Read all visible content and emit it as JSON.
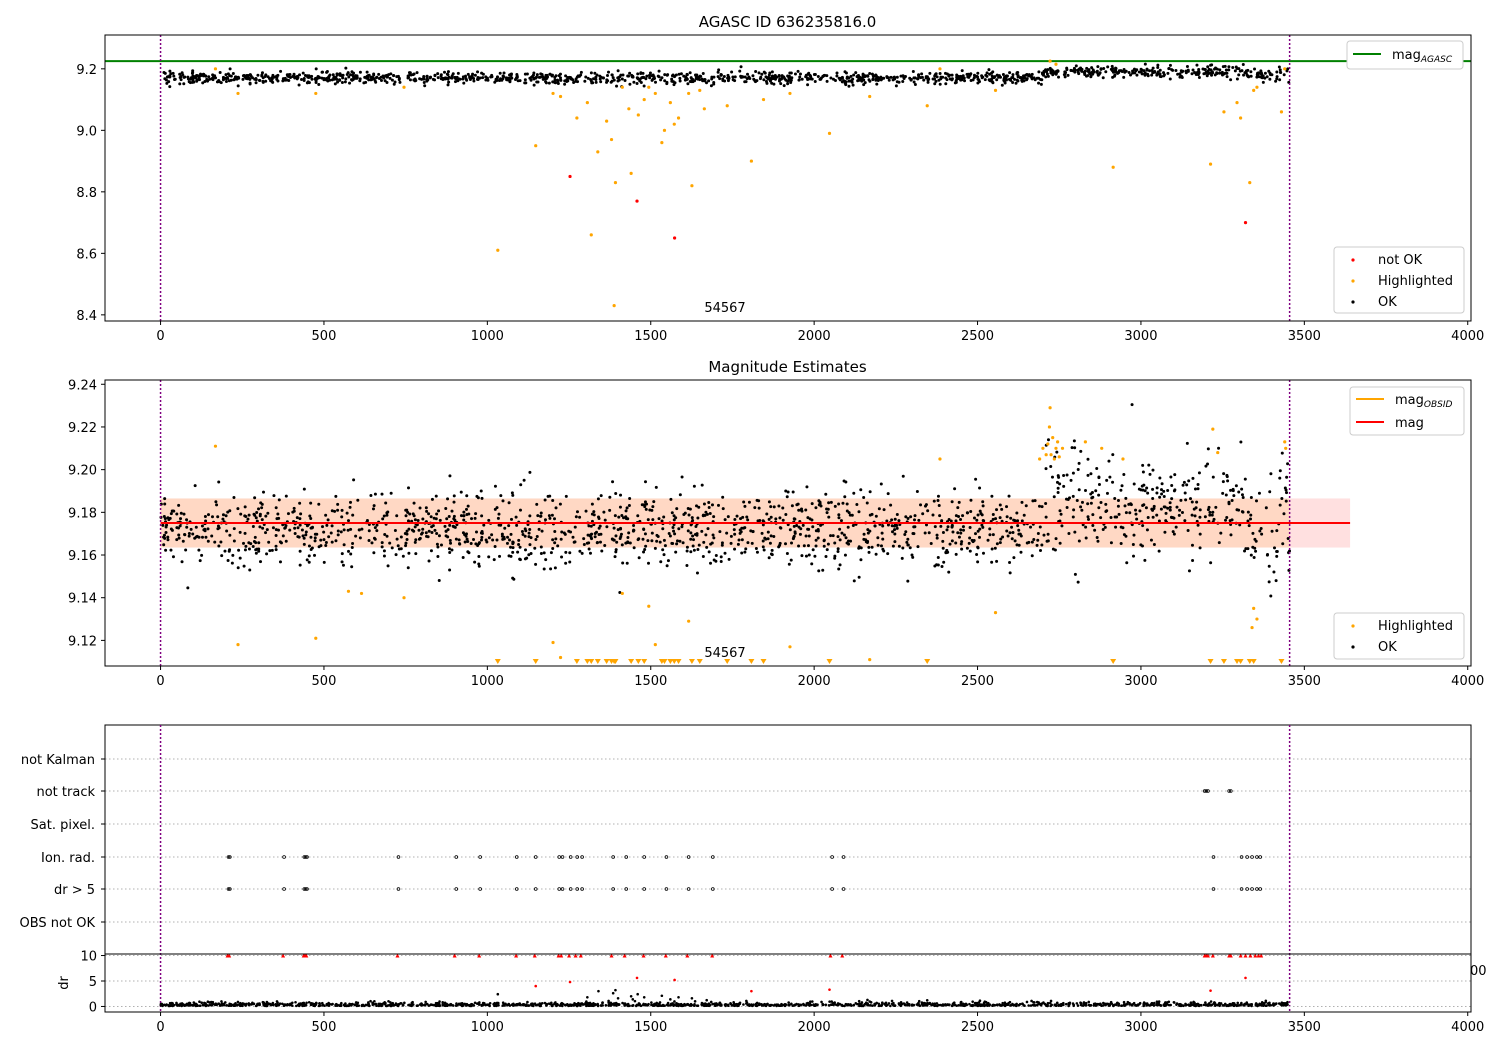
{
  "chart_data": [
    {
      "type": "scatter",
      "title": "AGASC ID 636235816.0",
      "xlim": [
        -170,
        4010
      ],
      "ylim": [
        8.38,
        9.31
      ],
      "xticks": [
        0,
        500,
        1000,
        1500,
        2000,
        2500,
        3000,
        3500,
        4000
      ],
      "yticks": [
        8.4,
        8.6,
        8.8,
        9.0,
        9.2
      ],
      "ytick_labels": [
        "8.4",
        "8.6",
        "8.8",
        "9.0",
        "9.2"
      ],
      "annotation": {
        "text": "54567",
        "x": 1725,
        "y": 8.38
      },
      "vlines": [
        0,
        3455
      ],
      "hline": {
        "y": 9.225,
        "label_main": "mag",
        "label_sub": "AGASC",
        "color": "#008000"
      },
      "ok_band": {
        "x0": 0,
        "x1": 3455,
        "y_base": 9.17,
        "spread": 0.01,
        "n_points": 1400
      },
      "series": [
        {
          "name": "not OK",
          "color": "#ff0000",
          "points": [
            [
              1253,
              8.85
            ],
            [
              1458,
              8.77
            ],
            [
              1573,
              8.65
            ],
            [
              3320,
              8.7
            ]
          ]
        },
        {
          "name": "Highlighted",
          "color": "#ffa500",
          "points": [
            [
              168,
              9.2
            ],
            [
              237,
              9.12
            ],
            [
              475,
              9.12
            ],
            [
              745,
              9.14
            ],
            [
              1032,
              8.61
            ],
            [
              1148,
              8.95
            ],
            [
              1201,
              9.12
            ],
            [
              1224,
              9.11
            ],
            [
              1274,
              9.04
            ],
            [
              1306,
              9.09
            ],
            [
              1318,
              8.66
            ],
            [
              1338,
              8.93
            ],
            [
              1365,
              9.03
            ],
            [
              1380,
              8.97
            ],
            [
              1388,
              8.43
            ],
            [
              1392,
              8.83
            ],
            [
              1413,
              9.14
            ],
            [
              1433,
              9.07
            ],
            [
              1440,
              8.86
            ],
            [
              1462,
              9.05
            ],
            [
              1480,
              9.1
            ],
            [
              1494,
              9.14
            ],
            [
              1514,
              9.12
            ],
            [
              1534,
              8.96
            ],
            [
              1542,
              9.0
            ],
            [
              1560,
              9.09
            ],
            [
              1572,
              9.02
            ],
            [
              1585,
              9.04
            ],
            [
              1616,
              9.12
            ],
            [
              1626,
              8.82
            ],
            [
              1650,
              9.13
            ],
            [
              1664,
              9.07
            ],
            [
              1734,
              9.08
            ],
            [
              1808,
              8.9
            ],
            [
              1845,
              9.1
            ],
            [
              1926,
              9.12
            ],
            [
              2047,
              8.99
            ],
            [
              2170,
              9.11
            ],
            [
              2346,
              9.08
            ],
            [
              2385,
              9.2
            ],
            [
              2555,
              9.13
            ],
            [
              2722,
              9.225
            ],
            [
              2740,
              9.215
            ],
            [
              2915,
              8.88
            ],
            [
              3213,
              8.89
            ],
            [
              3254,
              9.06
            ],
            [
              3294,
              9.09
            ],
            [
              3305,
              9.04
            ],
            [
              3333,
              8.83
            ],
            [
              3345,
              9.13
            ],
            [
              3355,
              9.14
            ],
            [
              3430,
              9.06
            ],
            [
              3440,
              9.2
            ]
          ]
        },
        {
          "name": "OK",
          "color": "#000000",
          "points": []
        }
      ]
    },
    {
      "type": "scatter",
      "title": "Magnitude Estimates",
      "xlim": [
        -170,
        4010
      ],
      "ylim": [
        9.108,
        9.242
      ],
      "xticks": [
        0,
        500,
        1000,
        1500,
        2000,
        2500,
        3000,
        3500,
        4000
      ],
      "yticks": [
        9.12,
        9.14,
        9.16,
        9.18,
        9.2,
        9.22,
        9.24
      ],
      "ytick_labels": [
        "9.12",
        "9.14",
        "9.16",
        "9.18",
        "9.20",
        "9.22",
        "9.24"
      ],
      "annotation": {
        "text": "54567",
        "x": 1725,
        "y": 9.108
      },
      "vlines": [
        0,
        3455
      ],
      "mag_line": {
        "y": 9.175,
        "x0": 0,
        "x1": 3455,
        "label": "mag",
        "color": "#ff0000"
      },
      "band": {
        "x0": 0,
        "x1": 3640,
        "y0": 9.1635,
        "y1": 9.1865
      },
      "mag_obsid_label": {
        "main": "mag",
        "sub": "OBSID",
        "color": "#ffa500"
      },
      "below_range_markers_x": [
        1032,
        1148,
        1274,
        1306,
        1318,
        1338,
        1365,
        1380,
        1388,
        1392,
        1440,
        1462,
        1480,
        1534,
        1542,
        1560,
        1572,
        1585,
        1626,
        1650,
        1734,
        1808,
        1845,
        2047,
        2346,
        2915,
        3213,
        3254,
        3294,
        3305,
        3333,
        3345,
        3430
      ],
      "ok_band": {
        "x0": 0,
        "x1": 3455,
        "y_base": 9.172,
        "spread": 0.009,
        "n_points": 1700
      },
      "series": [
        {
          "name": "Highlighted",
          "color": "#ffa500",
          "points": [
            [
              168,
              9.211
            ],
            [
              237,
              9.118
            ],
            [
              475,
              9.121
            ],
            [
              575,
              9.143
            ],
            [
              615,
              9.142
            ],
            [
              745,
              9.14
            ],
            [
              1201,
              9.119
            ],
            [
              1224,
              9.112
            ],
            [
              1413,
              9.142
            ],
            [
              1494,
              9.136
            ],
            [
              1514,
              9.118
            ],
            [
              1616,
              9.129
            ],
            [
              1926,
              9.117
            ],
            [
              2170,
              9.111
            ],
            [
              2385,
              9.205
            ],
            [
              2555,
              9.133
            ],
            [
              2690,
              9.205
            ],
            [
              2700,
              9.21
            ],
            [
              2710,
              9.207
            ],
            [
              2715,
              9.212
            ],
            [
              2720,
              9.22
            ],
            [
              2722,
              9.229
            ],
            [
              2725,
              9.207
            ],
            [
              2730,
              9.215
            ],
            [
              2735,
              9.205
            ],
            [
              2740,
              9.21
            ],
            [
              2745,
              9.213
            ],
            [
              2750,
              9.206
            ],
            [
              2760,
              9.21
            ],
            [
              2830,
              9.213
            ],
            [
              2880,
              9.21
            ],
            [
              2945,
              9.205
            ],
            [
              3220,
              9.219
            ],
            [
              3235,
              9.208
            ],
            [
              3340,
              9.126
            ],
            [
              3345,
              9.135
            ],
            [
              3355,
              9.13
            ],
            [
              3440,
              9.213
            ],
            [
              3443,
              9.21
            ]
          ]
        },
        {
          "name": "OK",
          "color": "#000000",
          "points": []
        }
      ]
    },
    {
      "type": "scatter",
      "title": "",
      "xlim": [
        -170,
        4010
      ],
      "xticks": [
        0,
        500,
        1000,
        1500,
        2000,
        2500,
        3000,
        3500,
        4000
      ],
      "vlines": [
        0,
        3455
      ],
      "flags": [
        {
          "label": "not Kalman",
          "points": []
        },
        {
          "label": "not track",
          "points": [
            3195,
            3200,
            3205,
            3270,
            3275
          ]
        },
        {
          "label": "Sat. pixel.",
          "points": []
        },
        {
          "label": "Ion. rad.",
          "points": [
            208,
            212,
            378,
            440,
            444,
            448,
            728,
            905,
            978,
            1090,
            1148,
            1220,
            1230,
            1255,
            1275,
            1290,
            1385,
            1425,
            1480,
            1548,
            1616,
            1690,
            2055,
            2090,
            3222,
            3308,
            3325,
            3340,
            3355,
            3365
          ]
        },
        {
          "label": "dr > 5",
          "points": [
            208,
            212,
            378,
            440,
            444,
            448,
            728,
            905,
            978,
            1090,
            1148,
            1220,
            1230,
            1255,
            1275,
            1290,
            1385,
            1425,
            1480,
            1548,
            1616,
            1690,
            2055,
            2090,
            3222,
            3308,
            3325,
            3340,
            3355,
            3365
          ]
        },
        {
          "label": "OBS not OK",
          "points": []
        }
      ],
      "dr": {
        "ylabel": "dr",
        "ylim": [
          -0.5,
          10.3
        ],
        "yticks": [
          0,
          5,
          10
        ],
        "ytick_labels": [
          "0",
          "5",
          "10"
        ],
        "clipped_x": [
          205,
          210,
          375,
          438,
          442,
          446,
          725,
          900,
          975,
          1088,
          1145,
          1218,
          1226,
          1250,
          1270,
          1286,
          1380,
          1420,
          1478,
          1546,
          1612,
          1688,
          2050,
          2086,
          3195,
          3200,
          3205,
          3220,
          3270,
          3275,
          3305,
          3320,
          3335,
          3350,
          3360,
          3368
        ],
        "red_points": [
          [
            1148,
            4.0
          ],
          [
            1253,
            4.8
          ],
          [
            1458,
            5.6
          ],
          [
            1573,
            5.2
          ],
          [
            1808,
            3.0
          ],
          [
            2047,
            3.3
          ],
          [
            3213,
            3.1
          ],
          [
            3320,
            5.6
          ]
        ],
        "black_points": [
          [
            1032,
            2.4
          ],
          [
            1306,
            1.8
          ],
          [
            1340,
            3.0
          ],
          [
            1385,
            2.6
          ],
          [
            1392,
            3.2
          ],
          [
            1400,
            1.6
          ],
          [
            1440,
            2.0
          ],
          [
            1445,
            1.4
          ],
          [
            1460,
            2.4
          ],
          [
            1480,
            1.8
          ],
          [
            1534,
            2.1
          ],
          [
            1560,
            1.4
          ],
          [
            1585,
            1.8
          ],
          [
            1626,
            1.6
          ],
          [
            2346,
            1.2
          ]
        ],
        "partial_tick_label": "00"
      }
    }
  ]
}
